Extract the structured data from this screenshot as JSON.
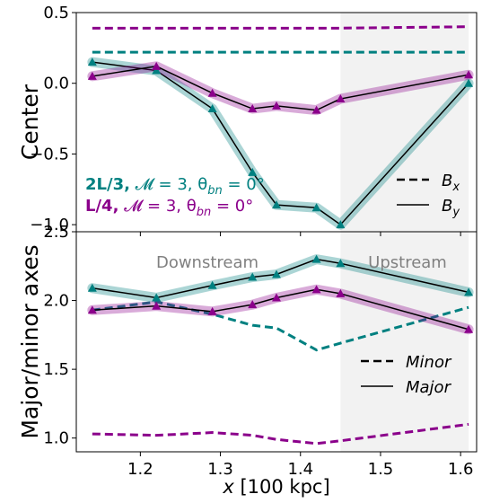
{
  "chart_data": {
    "type": "line",
    "x": [
      1.14,
      1.22,
      1.29,
      1.34,
      1.37,
      1.42,
      1.45,
      1.61
    ],
    "x_lim": [
      1.12,
      1.62
    ],
    "x_ticks": [
      1.2,
      1.3,
      1.4,
      1.5,
      1.6
    ],
    "x_tick_labels": [
      "1.2",
      "1.3",
      "1.4",
      "1.5",
      "1.6"
    ],
    "xlabel_math": "x",
    "xlabel_rest": " [100 kpc]",
    "shaded_region": [
      1.45,
      1.61
    ],
    "colors": {
      "2L/3": "#008080",
      "L/4": "#8b008b",
      "shade": "#e0e0e0"
    },
    "panels": [
      {
        "id": "center",
        "ylabel": "Center",
        "ylim": [
          -1.05,
          0.5
        ],
        "y_ticks": [
          0.5,
          0.0,
          -0.5,
          -1.0
        ],
        "y_tick_labels": [
          "0.5",
          "0.0",
          "−0.5",
          "−1.0"
        ],
        "series": [
          {
            "run": "2L/3",
            "component": "Bx",
            "style": "dashed",
            "values": [
              0.22,
              0.22,
              0.22,
              0.22,
              0.22,
              0.22,
              0.22,
              0.22
            ]
          },
          {
            "run": "L/4",
            "component": "Bx",
            "style": "dashed",
            "values": [
              0.39,
              0.39,
              0.39,
              0.39,
              0.39,
              0.39,
              0.39,
              0.4
            ]
          },
          {
            "run": "2L/3",
            "component": "By",
            "style": "solid",
            "markers": true,
            "values": [
              0.15,
              0.09,
              -0.18,
              -0.63,
              -0.86,
              -0.88,
              -1.0,
              0.0
            ]
          },
          {
            "run": "L/4",
            "component": "By",
            "style": "solid",
            "markers": true,
            "values": [
              0.05,
              0.12,
              -0.07,
              -0.18,
              -0.16,
              -0.19,
              -0.11,
              0.06
            ]
          }
        ],
        "legend": {
          "position": "lower-right",
          "entries": [
            {
              "style": "dashed",
              "sym": "B",
              "sub": "x"
            },
            {
              "style": "solid",
              "sym": "B",
              "sub": "y"
            }
          ]
        },
        "annotations": [
          {
            "run": "2L/3",
            "bold": "2L/3,",
            "rest": " 𝓜 = 3, θ",
            "sub": "bn",
            "tail": " = 0°"
          },
          {
            "run": "L/4",
            "bold": "L/4,",
            "rest": " 𝓜 = 3, θ",
            "sub": "bn",
            "tail": " = 0°"
          }
        ]
      },
      {
        "id": "axes",
        "ylabel": "Major/minor axes",
        "ylim": [
          0.9,
          2.5
        ],
        "y_ticks": [
          2.5,
          2.0,
          1.5,
          1.0
        ],
        "y_tick_labels": [
          "2.5",
          "2.0",
          "1.5",
          "1.0"
        ],
        "series": [
          {
            "run": "2L/3",
            "component": "Minor",
            "style": "dashed",
            "values": [
              1.93,
              1.99,
              1.9,
              1.82,
              1.8,
              1.64,
              1.69,
              1.95
            ]
          },
          {
            "run": "L/4",
            "component": "Minor",
            "style": "dashed",
            "values": [
              1.03,
              1.02,
              1.04,
              1.02,
              0.99,
              0.96,
              0.98,
              1.1
            ]
          },
          {
            "run": "2L/3",
            "component": "Major",
            "style": "solid",
            "markers": true,
            "values": [
              2.09,
              2.02,
              2.11,
              2.17,
              2.19,
              2.3,
              2.27,
              2.06
            ]
          },
          {
            "run": "L/4",
            "component": "Major",
            "style": "solid",
            "markers": true,
            "values": [
              1.93,
              1.96,
              1.92,
              1.97,
              2.02,
              2.08,
              2.05,
              1.79
            ]
          }
        ],
        "legend": {
          "position": "center-right",
          "entries": [
            {
              "style": "dashed",
              "label": "Minor"
            },
            {
              "style": "solid",
              "label": "Major"
            }
          ]
        },
        "region_labels": [
          "Downstream",
          "Upstream"
        ]
      }
    ]
  }
}
